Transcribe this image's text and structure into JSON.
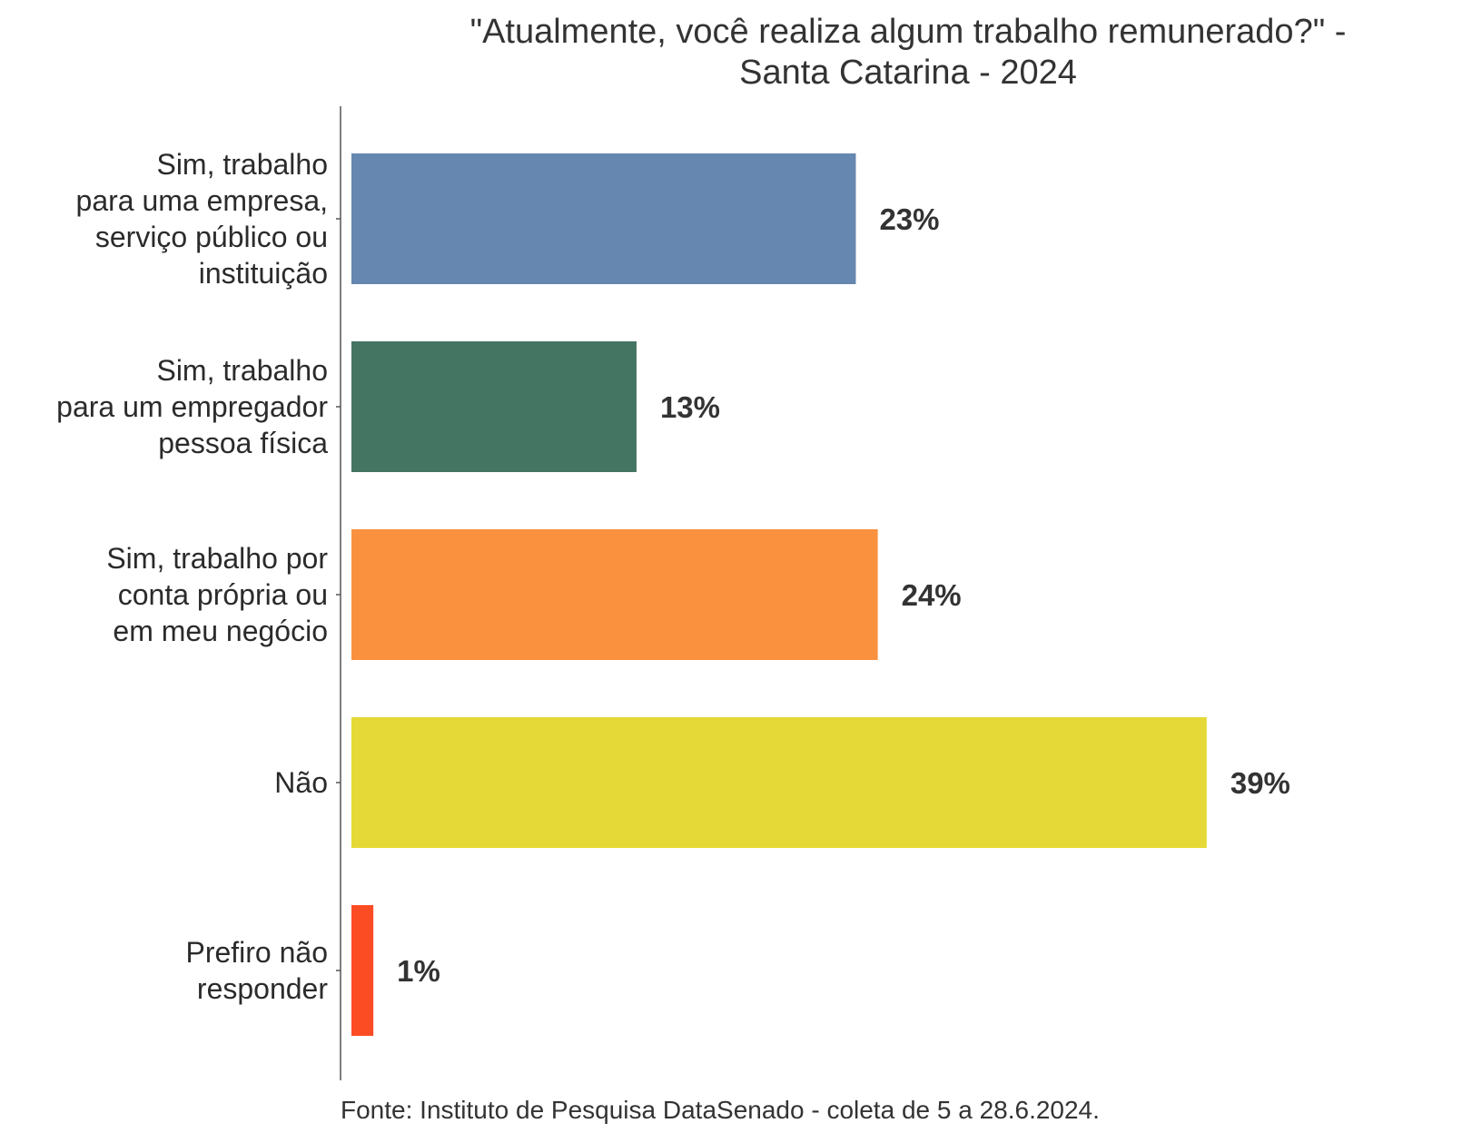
{
  "chart_data": {
    "type": "bar",
    "orientation": "horizontal",
    "title": [
      "\"Atualmente, você realiza algum trabalho remunerado?\" -",
      "Santa Catarina - 2024"
    ],
    "categories": [
      [
        "Sim, trabalho",
        "para uma empresa,",
        "serviço público ou",
        "instituição"
      ],
      [
        "Sim, trabalho",
        "para um empregador",
        "pessoa física"
      ],
      [
        "Sim, trabalho por",
        "conta própria ou",
        "em meu negócio"
      ],
      [
        "Não"
      ],
      [
        "Prefiro não",
        "responder"
      ]
    ],
    "values": [
      23,
      13,
      24,
      39,
      1
    ],
    "value_labels": [
      "23%",
      "13%",
      "24%",
      "39%",
      "1%"
    ],
    "colors": [
      "#6587B0",
      "#447462",
      "#F9913E",
      "#E4D936",
      "#FC4C24"
    ],
    "xlim": [
      0,
      42
    ],
    "grid": false,
    "legend": "none",
    "caption": "Fonte: Instituto de Pesquisa DataSenado - coleta de 5 a 28.6.2024."
  }
}
